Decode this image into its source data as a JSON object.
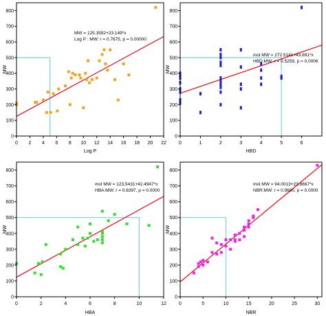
{
  "colors": {
    "frame": "#000000",
    "regression_line": "#e8141e",
    "reference_line": "#7fcbe8",
    "plot1_points": "#f2a21c",
    "plot2_points": "#1b1bd6",
    "plot3_points": "#2fe02a",
    "plot4_points": "#f21ef0"
  },
  "chart_data": [
    {
      "type": "scatter",
      "title": "",
      "xlabel": "Log P",
      "ylabel": "MW",
      "xlim": [
        0,
        22
      ],
      "ylim": [
        0,
        850
      ],
      "x_ticks": [
        0,
        2,
        4,
        6,
        8,
        10,
        12,
        14,
        16,
        18,
        20,
        22
      ],
      "y_ticks": [
        0,
        100,
        200,
        300,
        400,
        500,
        600,
        700,
        800
      ],
      "grid": false,
      "annotation": [
        "MW = 125.3592+23.149*x",
        "Log P : MW:   r = 0.7675, p = 0.00000"
      ],
      "regression": {
        "intercept": 125.3592,
        "slope": 23.149
      },
      "reference": {
        "x": 5,
        "y": 500
      },
      "series": [
        {
          "x": [
            0.0,
            0.0,
            2.8,
            3.0,
            4.0,
            4.5,
            4.7,
            5.1,
            5.5,
            6.3,
            6.1,
            7.3,
            7.8,
            8.0,
            8.2,
            8.4,
            8.8,
            9.4,
            9.6,
            10.0,
            10.3,
            10.5,
            10.7,
            10.9,
            11.3,
            12.0,
            12.4,
            12.8,
            13.1,
            13.3,
            13.6,
            14.0,
            14.7,
            15.2,
            16.0,
            16.8,
            20.8
          ],
          "y": [
            210,
            200,
            215,
            215,
            230,
            150,
            280,
            150,
            270,
            300,
            160,
            320,
            410,
            200,
            370,
            400,
            390,
            390,
            370,
            180,
            400,
            360,
            480,
            340,
            360,
            370,
            480,
            520,
            550,
            460,
            420,
            550,
            360,
            230,
            460,
            390,
            820
          ]
        }
      ]
    },
    {
      "type": "scatter",
      "title": "",
      "xlabel": "HBD",
      "ylabel": "MW",
      "xlim": [
        0,
        7
      ],
      "ylim": [
        0,
        850
      ],
      "x_ticks": [
        0,
        1,
        2,
        3,
        4,
        5,
        6
      ],
      "y_ticks": [
        0,
        100,
        200,
        300,
        400,
        500,
        600,
        700,
        800
      ],
      "grid": false,
      "annotation": [
        "mol MW = 272.5141+43.891*x",
        "HBD:MW:   r = 0.5259, p = 0.0006"
      ],
      "regression": {
        "intercept": 272.5141,
        "slope": 43.891
      },
      "reference": {
        "x": 5,
        "y": 500
      },
      "series": [
        {
          "x": [
            0,
            0,
            0,
            0,
            0,
            0,
            0,
            0,
            0,
            1,
            1,
            2,
            2,
            2,
            2,
            2,
            2,
            2,
            2,
            2,
            2,
            2,
            3,
            3,
            3,
            3,
            3,
            4,
            4,
            4,
            4,
            5,
            5,
            6
          ],
          "y": [
            210,
            220,
            230,
            280,
            300,
            340,
            370,
            390,
            400,
            150,
            270,
            200,
            280,
            310,
            330,
            350,
            370,
            450,
            470,
            500,
            520,
            550,
            180,
            300,
            330,
            440,
            550,
            330,
            370,
            420,
            460,
            370,
            380,
            820
          ]
        }
      ]
    },
    {
      "type": "scatter",
      "title": "",
      "xlabel": "HBA",
      "ylabel": "MW",
      "xlim": [
        0,
        12
      ],
      "ylim": [
        0,
        850
      ],
      "x_ticks": [
        0,
        2,
        4,
        6,
        8,
        10,
        12
      ],
      "y_ticks": [
        0,
        100,
        200,
        300,
        400,
        500,
        600,
        700,
        800
      ],
      "grid": false,
      "annotation": [
        "mol MW = 123.5431+42.4947*x",
        "HBA:MW:   r = 0.8397, p = 0.0000"
      ],
      "regression": {
        "intercept": 123.5431,
        "slope": 42.4947
      },
      "reference": {
        "x": 10,
        "y": 500
      },
      "series": [
        {
          "x": [
            0,
            1.5,
            1.8,
            2.0,
            2.1,
            2.4,
            3.6,
            3.6,
            3.8,
            4.0,
            4.6,
            5.0,
            5.0,
            5.4,
            5.6,
            5.8,
            6.0,
            6.0,
            6.3,
            6.6,
            7.0,
            7.0,
            7.0,
            7.0,
            7.0,
            7.0,
            7.5,
            8.0,
            9.0,
            10.8,
            11.5
          ],
          "y": [
            210,
            150,
            210,
            140,
            220,
            330,
            190,
            270,
            180,
            300,
            360,
            440,
            330,
            370,
            320,
            370,
            460,
            400,
            350,
            360,
            410,
            400,
            380,
            360,
            340,
            540,
            480,
            520,
            460,
            450,
            820
          ]
        }
      ]
    },
    {
      "type": "scatter",
      "title": "",
      "xlabel": "NBR",
      "ylabel": "MW",
      "xlim": [
        0,
        31
      ],
      "ylim": [
        0,
        850
      ],
      "x_ticks": [
        0,
        5,
        10,
        15,
        20,
        25,
        30
      ],
      "y_ticks": [
        0,
        100,
        200,
        300,
        400,
        500,
        600,
        700,
        800
      ],
      "grid": false,
      "annotation": [
        "mol MW = 94.0013+23.8667*x",
        "NBR:MW:   r = 0.9600, p = 0.0000"
      ],
      "regression": {
        "intercept": 94.0013,
        "slope": 23.8667
      },
      "reference": {
        "x": 10,
        "y": 500
      },
      "series": [
        {
          "x": [
            3.0,
            4.0,
            4.0,
            4.5,
            5.0,
            5.0,
            6.0,
            7.0,
            7.0,
            8.0,
            8.0,
            9.0,
            9.0,
            10.0,
            10.0,
            11.0,
            11.0,
            12.0,
            12.0,
            12.0,
            13.0,
            13.0,
            14.0,
            14.0,
            14.0,
            15.0,
            15.0,
            15.0,
            16.0,
            16.0,
            17.0,
            30.0
          ],
          "y": [
            150,
            190,
            210,
            220,
            200,
            230,
            220,
            280,
            370,
            340,
            270,
            330,
            280,
            360,
            320,
            300,
            360,
            360,
            390,
            350,
            360,
            400,
            380,
            420,
            440,
            460,
            480,
            440,
            500,
            510,
            550,
            830
          ]
        }
      ]
    }
  ]
}
